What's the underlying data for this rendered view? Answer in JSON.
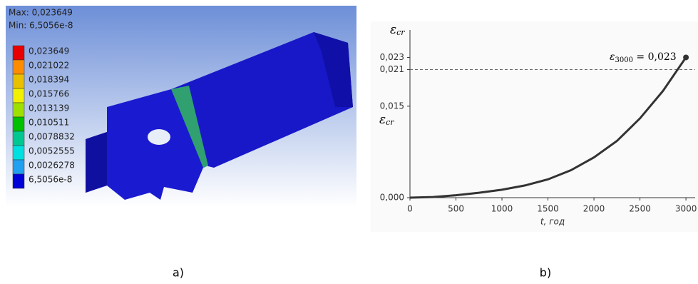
{
  "chart_data": [
    {
      "type": "contour",
      "max_label": "Max: 0,023649",
      "min_label": "Min: 6,5056e-8",
      "legend": [
        {
          "value": 0.023649,
          "label": "0,023649"
        },
        {
          "value": 0.021022,
          "label": "0,021022"
        },
        {
          "value": 0.018394,
          "label": "0,018394"
        },
        {
          "value": 0.015766,
          "label": "0,015766"
        },
        {
          "value": 0.013139,
          "label": "0,013139"
        },
        {
          "value": 0.010511,
          "label": "0,010511"
        },
        {
          "value": 0.0078832,
          "label": "0,0078832"
        },
        {
          "value": 0.0052555,
          "label": "0,0052555"
        },
        {
          "value": 0.0026278,
          "label": "0,0026278"
        },
        {
          "value": 6.5056e-08,
          "label": "6,5056e-8"
        }
      ],
      "band_colors": [
        "#e80000",
        "#ff8c00",
        "#e8c000",
        "#f0f000",
        "#a0e000",
        "#00c000",
        "#00c890",
        "#00e0e0",
        "#20a0f0",
        "#0000d8"
      ],
      "caption": "a)"
    },
    {
      "type": "line",
      "y_label_symbol": "ε",
      "y_label_sub": "cr",
      "x_label": "t, год",
      "annotation_symbol": "ε",
      "annotation_sub": "3000",
      "annotation_text": " = 0,023",
      "x": [
        0,
        250,
        500,
        750,
        1000,
        1250,
        1500,
        1750,
        2000,
        2250,
        2500,
        2750,
        3000
      ],
      "series": [
        {
          "color": "#333333",
          "values": [
            0,
            0.0001,
            0.0004,
            0.0008,
            0.0013,
            0.002,
            0.003,
            0.0045,
            0.0066,
            0.0093,
            0.013,
            0.0175,
            0.023
          ]
        }
      ],
      "xlim": [
        0,
        3100
      ],
      "ylim": [
        0,
        0.0275
      ],
      "xticks": [
        0,
        500,
        1000,
        1500,
        2000,
        2500,
        3000
      ],
      "yticks": [
        {
          "value": 0,
          "label": "0,000"
        },
        {
          "value": 0.015,
          "label": "0,015"
        },
        {
          "value": 0.021,
          "label": "0,021"
        },
        {
          "value": 0.023,
          "label": "0,023"
        }
      ],
      "caption": "b)"
    }
  ]
}
